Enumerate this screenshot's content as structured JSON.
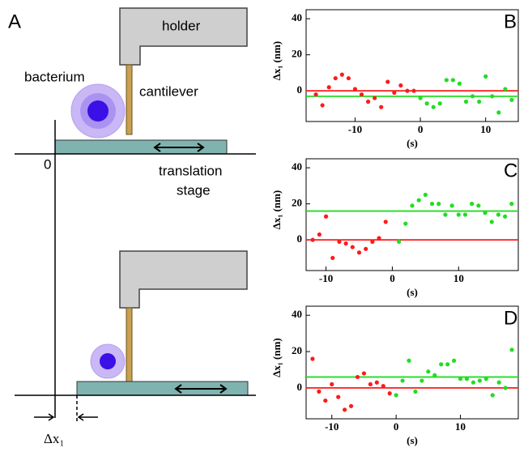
{
  "diagram": {
    "panel": "A",
    "holder": "holder",
    "bacterium": "bacterium",
    "cantilever": "cantilever",
    "origin": "0",
    "stage_line1": "translation",
    "stage_line2": "stage",
    "displacement": "Δx₁"
  },
  "chart_data": [
    {
      "type": "scatter",
      "panel": "B",
      "ylabel": "Δx₁ (nm)",
      "xlabel": "(s)",
      "xlim": [
        -17.5,
        15
      ],
      "xticks": [
        -10,
        0,
        10
      ],
      "ylim": [
        -17,
        45
      ],
      "yticks": [
        0,
        20,
        40
      ],
      "series": [
        {
          "color": "#ff1a1a",
          "x": [
            -16,
            -15,
            -14,
            -13,
            -12,
            -11,
            -10,
            -9,
            -8,
            -7,
            -6,
            -5,
            -4,
            -3,
            -2,
            -1
          ],
          "y": [
            -2,
            -8,
            2,
            7,
            9,
            7,
            1,
            -2,
            -6,
            -4,
            -9,
            5,
            -1,
            3,
            0,
            0
          ]
        },
        {
          "color": "#22dd22",
          "x": [
            0,
            1,
            2,
            3,
            4,
            5,
            6,
            7,
            8,
            9,
            10,
            11,
            12,
            13,
            14
          ],
          "y": [
            -4,
            -7,
            -9,
            -7,
            6,
            6,
            4,
            -6,
            -3,
            -6,
            8,
            -3,
            -12,
            1,
            -5
          ]
        }
      ],
      "reference_lines": [
        {
          "value": 0,
          "color": "#ff1a1a"
        },
        {
          "value": -3,
          "color": "#22dd22"
        }
      ]
    },
    {
      "type": "scatter",
      "panel": "C",
      "ylabel": "Δx₁ (nm)",
      "xlabel": "(s)",
      "xlim": [
        -13,
        19
      ],
      "xticks": [
        -10,
        0,
        10
      ],
      "ylim": [
        -17,
        45
      ],
      "yticks": [
        0,
        20,
        40
      ],
      "series": [
        {
          "color": "#ff1a1a",
          "x": [
            -12,
            -11,
            -10,
            -9,
            -8,
            -7,
            -6,
            -5,
            -4,
            -3,
            -2,
            -1
          ],
          "y": [
            0,
            3,
            13,
            -10,
            -1,
            -2,
            -4,
            -7,
            -5,
            -1,
            1,
            10
          ]
        },
        {
          "color": "#22dd22",
          "x": [
            1,
            2,
            3,
            4,
            5,
            6,
            7,
            8,
            9,
            10,
            11,
            12,
            13,
            14,
            15,
            16,
            17,
            18
          ],
          "y": [
            -1,
            9,
            19,
            22,
            25,
            20,
            20,
            14,
            19,
            14,
            14,
            20,
            19,
            15,
            10,
            14,
            13,
            20
          ]
        }
      ],
      "reference_lines": [
        {
          "value": 0,
          "color": "#ff1a1a"
        },
        {
          "value": 16,
          "color": "#22dd22"
        }
      ]
    },
    {
      "type": "scatter",
      "panel": "D",
      "ylabel": "Δx₁ (nm)",
      "xlabel": "(s)",
      "xlim": [
        -14,
        19
      ],
      "xticks": [
        -10,
        0,
        10
      ],
      "ylim": [
        -17,
        45
      ],
      "yticks": [
        0,
        20,
        40
      ],
      "series": [
        {
          "color": "#ff1a1a",
          "x": [
            -13,
            -12,
            -11,
            -10,
            -9,
            -8,
            -7,
            -6,
            -5,
            -4,
            -3,
            -2,
            -1
          ],
          "y": [
            16,
            -2,
            -7,
            2,
            -5,
            -12,
            -10,
            6,
            8,
            2,
            3,
            1,
            -3
          ]
        },
        {
          "color": "#22dd22",
          "x": [
            0,
            1,
            2,
            3,
            4,
            5,
            6,
            7,
            8,
            9,
            10,
            11,
            12,
            13,
            14,
            15,
            16,
            17,
            18
          ],
          "y": [
            -4,
            4,
            15,
            -2,
            4,
            9,
            7,
            13,
            13,
            15,
            5,
            5,
            3,
            4,
            5,
            -4,
            3,
            0,
            21
          ]
        }
      ],
      "reference_lines": [
        {
          "value": 0,
          "color": "#ff1a1a"
        },
        {
          "value": 6,
          "color": "#22dd22"
        }
      ]
    }
  ]
}
